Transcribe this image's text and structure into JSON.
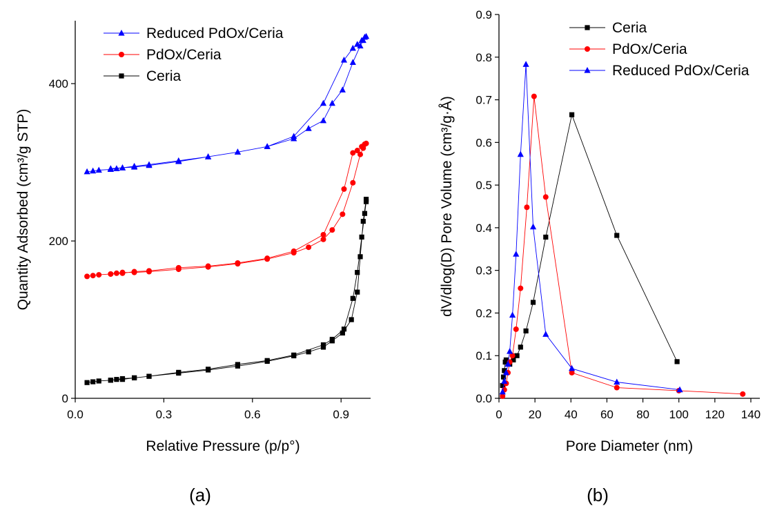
{
  "figure": {
    "panel_a_label": "(a)",
    "panel_b_label": "(b)"
  },
  "chart_data": [
    {
      "type": "line",
      "panel": "(a)",
      "xlabel": "Relative Pressure (p/p°)",
      "ylabel": "Quantity Adsorbed (cm³/g STP)",
      "xlim": [
        0,
        1.0
      ],
      "ylim": [
        0,
        480
      ],
      "xticks": [
        0.0,
        0.3,
        0.6,
        0.9
      ],
      "xtick_labels": [
        "0.0",
        "0.3",
        "0.6",
        "0.9"
      ],
      "yticks": [
        0,
        200,
        400
      ],
      "ytick_labels": [
        "0",
        "200",
        "400"
      ],
      "grid": false,
      "legend_position": "top-left",
      "series": [
        {
          "name": "Reduced PdOx/Ceria",
          "color": "#0000ff",
          "marker": "triangle",
          "x": [
            0.04,
            0.06,
            0.08,
            0.12,
            0.14,
            0.16,
            0.2,
            0.25,
            0.35,
            0.45,
            0.55,
            0.65,
            0.74,
            0.79,
            0.84,
            0.87,
            0.905,
            0.94,
            0.965,
            0.975,
            0.985,
            0.98,
            0.97,
            0.955,
            0.94,
            0.91,
            0.84,
            0.74,
            0.65,
            0.55,
            0.45,
            0.35,
            0.25,
            0.2,
            0.16,
            0.12
          ],
          "y": [
            288,
            289,
            290,
            291,
            292,
            293,
            294,
            296,
            301,
            307,
            313,
            320,
            330,
            343,
            353,
            375,
            392,
            427,
            448,
            455,
            460,
            459,
            455,
            450,
            445,
            430,
            375,
            333,
            320,
            313,
            307,
            302,
            297,
            295,
            293,
            292
          ]
        },
        {
          "name": "PdOx/Ceria",
          "color": "#ff0000",
          "marker": "circle",
          "x": [
            0.04,
            0.06,
            0.08,
            0.12,
            0.14,
            0.16,
            0.2,
            0.25,
            0.35,
            0.45,
            0.55,
            0.65,
            0.74,
            0.79,
            0.84,
            0.87,
            0.905,
            0.94,
            0.965,
            0.975,
            0.985,
            0.98,
            0.97,
            0.955,
            0.94,
            0.91,
            0.84,
            0.74,
            0.65,
            0.55,
            0.45,
            0.35,
            0.25,
            0.2,
            0.16,
            0.12
          ],
          "y": [
            155,
            156,
            157,
            158,
            159,
            160,
            160,
            161,
            164,
            167,
            171,
            177,
            185,
            192,
            202,
            214,
            234,
            274,
            310,
            318,
            324,
            323,
            320,
            315,
            312,
            266,
            208,
            187,
            178,
            172,
            168,
            166,
            162,
            161,
            159,
            158
          ]
        },
        {
          "name": "Ceria",
          "color": "#000000",
          "marker": "square",
          "x": [
            0.04,
            0.06,
            0.08,
            0.12,
            0.14,
            0.16,
            0.2,
            0.25,
            0.35,
            0.45,
            0.55,
            0.65,
            0.74,
            0.79,
            0.84,
            0.87,
            0.905,
            0.935,
            0.955,
            0.965,
            0.975,
            0.985,
            0.985,
            0.98,
            0.97,
            0.955,
            0.94,
            0.91,
            0.87,
            0.84,
            0.74,
            0.65,
            0.55,
            0.45,
            0.35,
            0.25,
            0.2,
            0.16,
            0.12
          ],
          "y": [
            20,
            21,
            22,
            23,
            24,
            25,
            26,
            28,
            32,
            36,
            41,
            47,
            54,
            59,
            65,
            73,
            83,
            100,
            135,
            180,
            225,
            253,
            250,
            235,
            205,
            160,
            127,
            88,
            75,
            68,
            55,
            48,
            43,
            37,
            33,
            28,
            26,
            24,
            23
          ]
        }
      ]
    },
    {
      "type": "line",
      "panel": "(b)",
      "xlabel": "Pore Diameter (nm)",
      "ylabel": "dV/dlog(D) Pore Volume (cm³/g·Å)",
      "xlim": [
        0,
        145
      ],
      "ylim": [
        0,
        0.9
      ],
      "xticks": [
        0,
        20,
        40,
        60,
        80,
        100,
        120,
        140
      ],
      "xtick_labels": [
        "0",
        "20",
        "40",
        "60",
        "80",
        "100",
        "120",
        "140"
      ],
      "yticks": [
        0.0,
        0.1,
        0.2,
        0.3,
        0.4,
        0.5,
        0.6,
        0.7,
        0.8,
        0.9
      ],
      "ytick_labels": [
        "0.0",
        "0.1",
        "0.2",
        "0.3",
        "0.4",
        "0.5",
        "0.6",
        "0.7",
        "0.8",
        "0.9"
      ],
      "grid": false,
      "legend_position": "top-right",
      "series": [
        {
          "name": "Ceria",
          "color": "#000000",
          "marker": "square",
          "x": [
            2,
            2.5,
            3,
            3.5,
            4,
            5,
            6,
            8,
            10,
            12,
            15,
            19,
            26,
            40.5,
            65.5,
            99
          ],
          "y": [
            0.03,
            0.05,
            0.065,
            0.085,
            0.09,
            0.085,
            0.08,
            0.09,
            0.1,
            0.12,
            0.158,
            0.225,
            0.378,
            0.665,
            0.382,
            0.086
          ]
        },
        {
          "name": "PdOx/Ceria",
          "color": "#ff0000",
          "marker": "circle",
          "x": [
            2,
            3,
            4,
            5,
            6,
            7.5,
            9.5,
            12,
            15.5,
            19.5,
            26,
            40.5,
            65.5,
            100,
            135.5
          ],
          "y": [
            0.005,
            0.02,
            0.035,
            0.06,
            0.085,
            0.1,
            0.162,
            0.258,
            0.448,
            0.708,
            0.472,
            0.06,
            0.025,
            0.018,
            0.01
          ]
        },
        {
          "name": "Reduced PdOx/Ceria",
          "color": "#0000ff",
          "marker": "triangle",
          "x": [
            2,
            3,
            4,
            5,
            6,
            7.5,
            9.5,
            12,
            15,
            19,
            26,
            40.5,
            65.5,
            100.5
          ],
          "y": [
            0.015,
            0.04,
            0.06,
            0.08,
            0.11,
            0.195,
            0.338,
            0.572,
            0.783,
            0.402,
            0.15,
            0.07,
            0.038,
            0.02
          ]
        }
      ]
    }
  ]
}
